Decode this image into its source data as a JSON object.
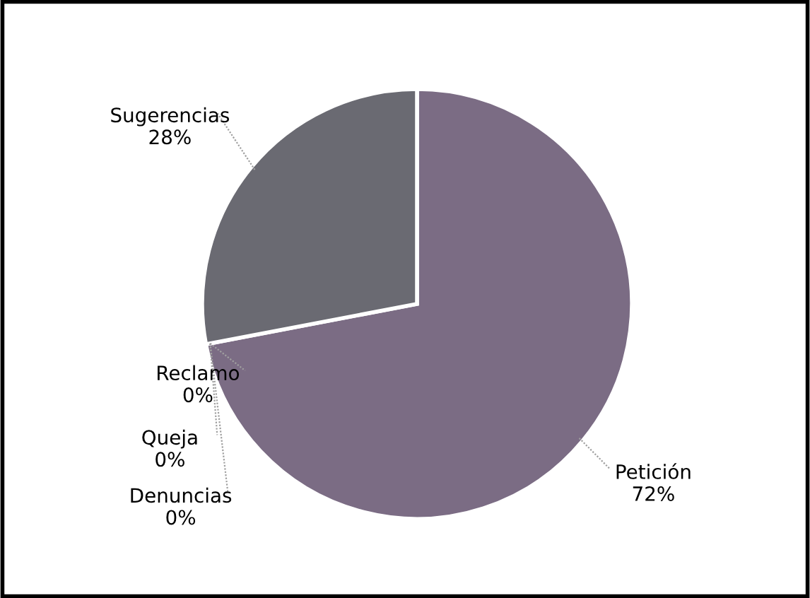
{
  "chart_data": {
    "type": "pie",
    "categories": [
      "Petición",
      "Denuncias",
      "Queja",
      "Reclamo",
      "Sugerencias"
    ],
    "values": [
      72,
      0,
      0,
      0,
      28
    ],
    "colors": [
      "#7b6c84",
      "#6e6a78",
      "#6e6a78",
      "#6e6a78",
      "#6a6a72"
    ],
    "value_labels": [
      "72%",
      "0%",
      "0%",
      "0%",
      "28%"
    ]
  }
}
